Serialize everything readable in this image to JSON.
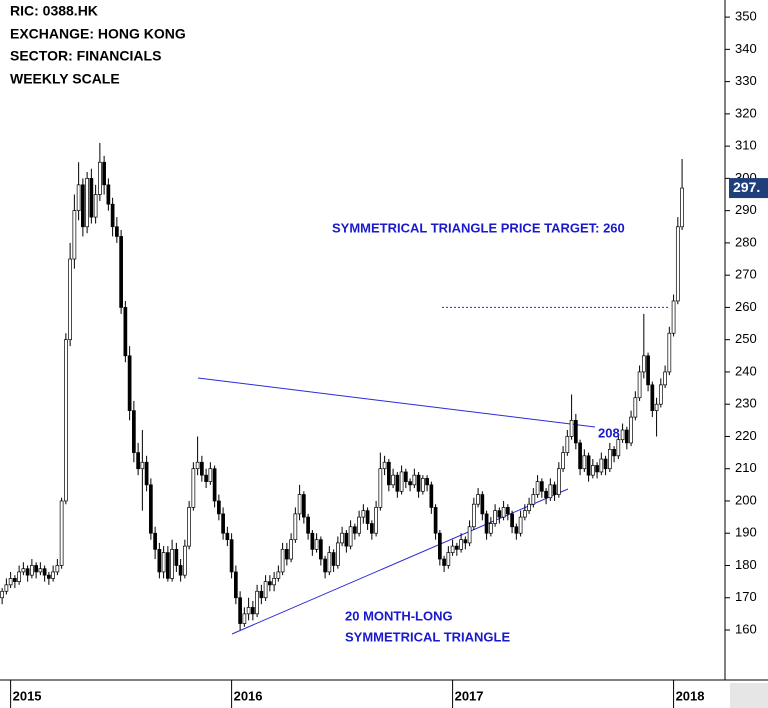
{
  "chart_data": {
    "type": "candlestick",
    "title_lines": [
      "RIC: 0388.HK",
      "EXCHANGE: HONG KONG",
      "SECTOR: FINANCIALS",
      "WEEKLY SCALE"
    ],
    "annotations": [
      "SYMMETRICAL TRIANGLE PRICE TARGET: 260",
      "208",
      "20 MONTH-LONG",
      "SYMMETRICAL TRIANGLE"
    ],
    "target_line": 260,
    "last_price": {
      "value": 297,
      "label": "297."
    },
    "up_color": "#ffffff",
    "down_color": "#000000",
    "last_price_color": "#1f3f7a",
    "ylim": [
      144.5,
      355.3
    ],
    "yticks": [
      160,
      170,
      180,
      190,
      200,
      210,
      220,
      230,
      240,
      250,
      260,
      270,
      280,
      290,
      300,
      310,
      320,
      330,
      340,
      350
    ],
    "xlim": [
      -0.5,
      170.1
    ],
    "xticks": [
      {
        "value": 2,
        "label": "2015"
      },
      {
        "value": 54,
        "label": "2016"
      },
      {
        "value": 106,
        "label": "2017"
      },
      {
        "value": 158,
        "label": "2018"
      }
    ],
    "candles": [
      [
        170,
        173,
        168,
        172
      ],
      [
        172,
        176,
        171,
        174
      ],
      [
        174,
        178,
        173,
        176
      ],
      [
        176,
        177,
        173,
        175
      ],
      [
        175,
        180,
        174,
        178
      ],
      [
        178,
        181,
        177,
        179
      ],
      [
        179,
        180,
        175,
        177
      ],
      [
        177,
        182,
        176,
        180
      ],
      [
        180,
        181,
        176,
        178
      ],
      [
        178,
        181,
        177,
        179
      ],
      [
        179,
        180,
        175,
        177
      ],
      [
        177,
        178,
        174,
        176
      ],
      [
        176,
        180,
        175,
        178
      ],
      [
        178,
        182,
        177,
        180
      ],
      [
        180,
        201,
        179,
        200
      ],
      [
        200,
        252,
        199,
        250
      ],
      [
        250,
        280,
        248,
        275
      ],
      [
        275,
        295,
        272,
        290
      ],
      [
        290,
        305,
        287,
        298
      ],
      [
        298,
        300,
        282,
        285
      ],
      [
        285,
        302,
        283,
        300
      ],
      [
        300,
        303,
        286,
        288
      ],
      [
        288,
        298,
        286,
        295
      ],
      [
        295,
        311,
        293,
        305
      ],
      [
        305,
        307,
        295,
        298
      ],
      [
        298,
        300,
        290,
        292
      ],
      [
        292,
        294,
        282,
        285
      ],
      [
        285,
        288,
        280,
        282
      ],
      [
        282,
        284,
        258,
        260
      ],
      [
        260,
        262,
        243,
        245
      ],
      [
        245,
        248,
        225,
        228
      ],
      [
        228,
        231,
        212,
        215
      ],
      [
        215,
        218,
        208,
        210
      ],
      [
        210,
        222,
        197,
        212
      ],
      [
        212,
        214,
        203,
        205
      ],
      [
        205,
        207,
        188,
        190
      ],
      [
        190,
        192,
        182,
        185
      ],
      [
        185,
        187,
        176,
        178
      ],
      [
        178,
        186,
        176,
        184
      ],
      [
        184,
        186,
        175,
        176
      ],
      [
        176,
        188,
        175,
        185
      ],
      [
        185,
        187,
        178,
        180
      ],
      [
        180,
        182,
        175,
        177
      ],
      [
        177,
        188,
        176,
        186
      ],
      [
        186,
        200,
        185,
        198
      ],
      [
        198,
        212,
        197,
        210
      ],
      [
        210,
        220,
        208,
        212
      ],
      [
        212,
        214,
        206,
        208
      ],
      [
        208,
        210,
        204,
        206
      ],
      [
        206,
        212,
        205,
        210
      ],
      [
        210,
        211,
        198,
        200
      ],
      [
        200,
        202,
        194,
        196
      ],
      [
        196,
        198,
        188,
        190
      ],
      [
        190,
        192,
        186,
        188
      ],
      [
        188,
        190,
        176,
        178
      ],
      [
        178,
        180,
        168,
        170
      ],
      [
        170,
        172,
        160,
        162
      ],
      [
        162,
        167,
        161,
        165
      ],
      [
        165,
        170,
        163,
        167
      ],
      [
        167,
        169,
        163,
        165
      ],
      [
        165,
        174,
        164,
        172
      ],
      [
        172,
        174,
        168,
        170
      ],
      [
        170,
        177,
        169,
        175
      ],
      [
        175,
        177,
        172,
        174
      ],
      [
        174,
        178,
        172,
        176
      ],
      [
        176,
        180,
        175,
        178
      ],
      [
        178,
        187,
        177,
        185
      ],
      [
        185,
        187,
        180,
        182
      ],
      [
        182,
        190,
        181,
        188
      ],
      [
        188,
        198,
        187,
        196
      ],
      [
        196,
        205,
        194,
        202
      ],
      [
        202,
        203,
        193,
        195
      ],
      [
        195,
        196,
        188,
        190
      ],
      [
        190,
        191,
        183,
        185
      ],
      [
        185,
        190,
        184,
        188
      ],
      [
        188,
        189,
        180,
        182
      ],
      [
        182,
        183,
        176,
        178
      ],
      [
        178,
        186,
        177,
        184
      ],
      [
        184,
        185,
        178,
        180
      ],
      [
        180,
        189,
        179,
        187
      ],
      [
        187,
        192,
        186,
        190
      ],
      [
        190,
        191,
        184,
        186
      ],
      [
        186,
        194,
        185,
        192
      ],
      [
        192,
        193,
        188,
        190
      ],
      [
        190,
        197,
        189,
        195
      ],
      [
        195,
        199,
        193,
        197
      ],
      [
        197,
        198,
        191,
        193
      ],
      [
        193,
        194,
        188,
        190
      ],
      [
        190,
        200,
        189,
        198
      ],
      [
        198,
        215,
        197,
        210
      ],
      [
        210,
        214,
        208,
        212
      ],
      [
        212,
        213,
        203,
        205
      ],
      [
        205,
        210,
        204,
        208
      ],
      [
        208,
        209,
        201,
        203
      ],
      [
        203,
        211,
        202,
        209
      ],
      [
        209,
        210,
        204,
        206
      ],
      [
        206,
        207,
        203,
        205
      ],
      [
        205,
        210,
        204,
        208
      ],
      [
        208,
        209,
        201,
        203
      ],
      [
        203,
        208,
        202,
        207
      ],
      [
        207,
        208,
        203,
        205
      ],
      [
        205,
        206,
        196,
        198
      ],
      [
        198,
        199,
        188,
        190
      ],
      [
        190,
        191,
        180,
        182
      ],
      [
        182,
        183,
        178,
        180
      ],
      [
        180,
        186,
        179,
        184
      ],
      [
        184,
        188,
        183,
        186
      ],
      [
        186,
        187,
        183,
        185
      ],
      [
        185,
        190,
        184,
        188
      ],
      [
        188,
        189,
        185,
        187
      ],
      [
        187,
        194,
        186,
        192
      ],
      [
        192,
        201,
        191,
        199
      ],
      [
        199,
        204,
        198,
        202
      ],
      [
        202,
        203,
        194,
        196
      ],
      [
        196,
        197,
        188,
        190
      ],
      [
        190,
        195,
        189,
        193
      ],
      [
        193,
        199,
        192,
        197
      ],
      [
        197,
        198,
        193,
        195
      ],
      [
        195,
        200,
        194,
        198
      ],
      [
        198,
        199,
        194,
        196
      ],
      [
        196,
        197,
        190,
        192
      ],
      [
        192,
        193,
        188,
        190
      ],
      [
        190,
        197,
        189,
        195
      ],
      [
        195,
        199,
        194,
        197
      ],
      [
        197,
        201,
        196,
        199
      ],
      [
        199,
        204,
        198,
        202
      ],
      [
        202,
        208,
        201,
        206
      ],
      [
        206,
        207,
        201,
        203
      ],
      [
        203,
        204,
        199,
        201
      ],
      [
        201,
        207,
        200,
        205
      ],
      [
        205,
        206,
        200,
        202
      ],
      [
        202,
        212,
        201,
        210
      ],
      [
        210,
        217,
        209,
        215
      ],
      [
        215,
        222,
        214,
        220
      ],
      [
        220,
        233,
        219,
        225
      ],
      [
        225,
        227,
        216,
        218
      ],
      [
        218,
        219,
        208,
        210
      ],
      [
        210,
        216,
        209,
        214
      ],
      [
        214,
        215,
        206,
        208
      ],
      [
        208,
        213,
        207,
        211
      ],
      [
        211,
        212,
        207,
        209
      ],
      [
        209,
        215,
        208,
        213
      ],
      [
        213,
        214,
        208,
        210
      ],
      [
        210,
        218,
        209,
        216
      ],
      [
        216,
        217,
        212,
        214
      ],
      [
        214,
        221,
        213,
        219
      ],
      [
        219,
        224,
        218,
        222
      ],
      [
        222,
        223,
        216,
        218
      ],
      [
        218,
        228,
        217,
        226
      ],
      [
        226,
        234,
        225,
        232
      ],
      [
        232,
        242,
        231,
        240
      ],
      [
        240,
        258,
        238,
        245
      ],
      [
        245,
        246,
        234,
        236
      ],
      [
        236,
        237,
        226,
        228
      ],
      [
        228,
        232,
        220,
        230
      ],
      [
        230,
        238,
        229,
        236
      ],
      [
        236,
        242,
        235,
        240
      ],
      [
        240,
        254,
        239,
        252
      ],
      [
        252,
        264,
        251,
        262
      ],
      [
        262,
        288,
        261,
        285
      ],
      [
        285,
        306,
        284,
        297
      ]
    ]
  }
}
